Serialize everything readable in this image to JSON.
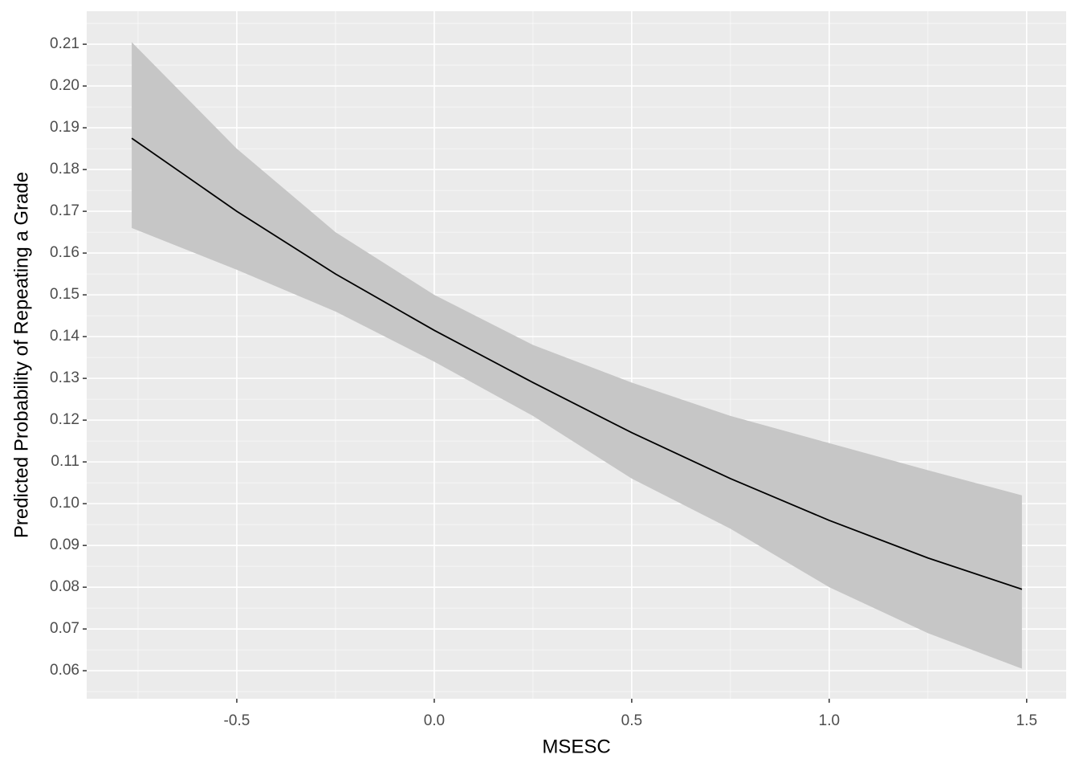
{
  "chart_data": {
    "type": "ribbon-line",
    "x_label": "MSESC",
    "y_label": "Predicted Probability of Repeating a Grade",
    "x": [
      -0.766,
      -0.5,
      -0.25,
      0,
      0.25,
      0.5,
      0.75,
      1.0,
      1.25,
      1.488
    ],
    "values": [
      0.1875,
      0.17,
      0.155,
      0.1415,
      0.129,
      0.117,
      0.106,
      0.096,
      0.087,
      0.0795
    ],
    "lower": [
      0.166,
      0.156,
      0.146,
      0.134,
      0.121,
      0.106,
      0.094,
      0.08,
      0.069,
      0.0605
    ],
    "upper": [
      0.2105,
      0.185,
      0.165,
      0.15,
      0.138,
      0.129,
      0.121,
      0.1145,
      0.108,
      0.102
    ],
    "color": "#000000",
    "band_color": "#c6c6c6",
    "xlim": [
      -0.88,
      1.6
    ],
    "ylim": [
      0.0533,
      0.2179
    ],
    "xticks": [
      -0.5,
      {
        "value": 0,
        "label": "0.0"
      },
      0.5,
      {
        "value": 1,
        "label": "1.0"
      },
      1.5
    ],
    "yticks": [
      0.06,
      0.07,
      0.08,
      0.09,
      {
        "value": 0.1,
        "label": "0.10"
      },
      0.11,
      0.12,
      0.13,
      0.14,
      0.15,
      0.16,
      0.17,
      0.18,
      0.19,
      {
        "value": 0.2,
        "label": "0.20"
      },
      0.21
    ],
    "grid": true
  }
}
